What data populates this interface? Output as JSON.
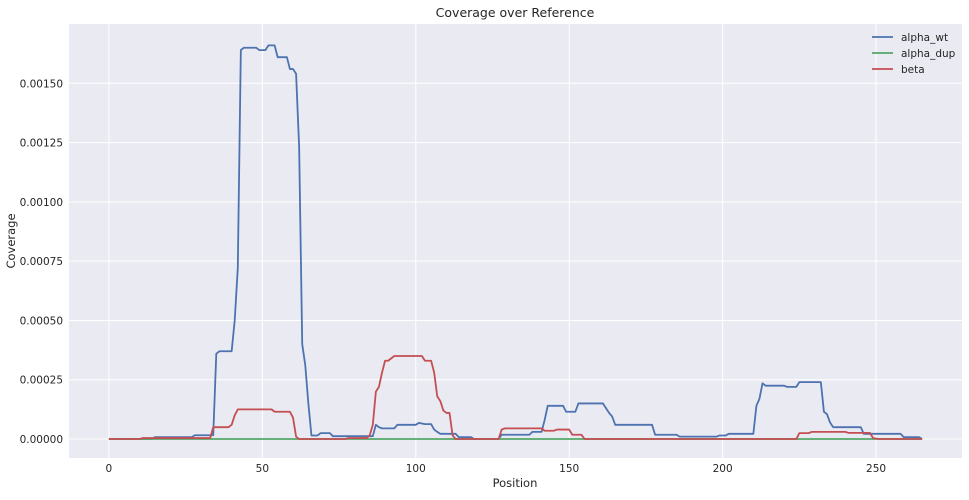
{
  "chart_data": {
    "type": "line",
    "title": "Coverage over Reference",
    "xlabel": "Position",
    "ylabel": "Coverage",
    "xlim": [
      -13,
      278
    ],
    "ylim": [
      -8e-05,
      0.00175
    ],
    "xticks": [
      0,
      50,
      100,
      150,
      200,
      250
    ],
    "xtick_labels": [
      "0",
      "50",
      "100",
      "150",
      "200",
      "250"
    ],
    "yticks": [
      0,
      0.00025,
      0.0005,
      0.00075,
      0.001,
      0.00125,
      0.0015
    ],
    "ytick_labels": [
      "0.00000",
      "0.00025",
      "0.00050",
      "0.00075",
      "0.00100",
      "0.00125",
      "0.00150"
    ],
    "grid": true,
    "background": "#EAEAF2",
    "legend_position": "top-right",
    "series": [
      {
        "name": "alpha_wt",
        "color": "#4C72B0",
        "points": [
          [
            0,
            0
          ],
          [
            14,
            0
          ],
          [
            15,
            8e-06
          ],
          [
            27,
            8e-06
          ],
          [
            28,
            1.6e-05
          ],
          [
            34,
            1.6e-05
          ],
          [
            35,
            0.00036
          ],
          [
            36,
            0.00037
          ],
          [
            40,
            0.00037
          ],
          [
            41,
            0.0005
          ],
          [
            42,
            0.00072
          ],
          [
            43,
            0.00164
          ],
          [
            44,
            0.00165
          ],
          [
            48,
            0.00165
          ],
          [
            49,
            0.00164
          ],
          [
            51,
            0.00164
          ],
          [
            52,
            0.00166
          ],
          [
            54,
            0.00166
          ],
          [
            55,
            0.00161
          ],
          [
            58,
            0.00161
          ],
          [
            59,
            0.00156
          ],
          [
            60,
            0.00156
          ],
          [
            61,
            0.00154
          ],
          [
            62,
            0.00123
          ],
          [
            63,
            0.0004
          ],
          [
            64,
            0.00031
          ],
          [
            65,
            0.00015
          ],
          [
            66,
            1.5e-05
          ],
          [
            68,
            1.5e-05
          ],
          [
            69,
            2.5e-05
          ],
          [
            72,
            2.5e-05
          ],
          [
            73,
            1.2e-05
          ],
          [
            86,
            1.2e-05
          ],
          [
            87,
            6e-05
          ],
          [
            88,
            5e-05
          ],
          [
            89,
            4.5e-05
          ],
          [
            93,
            4.5e-05
          ],
          [
            94,
            6e-05
          ],
          [
            100,
            6e-05
          ],
          [
            101,
            6.8e-05
          ],
          [
            103,
            6.3e-05
          ],
          [
            105,
            6.3e-05
          ],
          [
            106,
            4e-05
          ],
          [
            107,
            3e-05
          ],
          [
            108,
            2.2e-05
          ],
          [
            113,
            2.2e-05
          ],
          [
            114,
            8e-06
          ],
          [
            118,
            8e-06
          ],
          [
            119,
            0
          ],
          [
            127,
            0
          ],
          [
            128,
            1.8e-05
          ],
          [
            137,
            1.8e-05
          ],
          [
            138,
            3e-05
          ],
          [
            141,
            3e-05
          ],
          [
            142,
            8e-05
          ],
          [
            143,
            0.00014
          ],
          [
            148,
            0.00014
          ],
          [
            149,
            0.000115
          ],
          [
            152,
            0.000115
          ],
          [
            153,
            0.00015
          ],
          [
            161,
            0.00015
          ],
          [
            162,
            0.00013
          ],
          [
            163,
            0.00011
          ],
          [
            164,
            9.5e-05
          ],
          [
            165,
            6e-05
          ],
          [
            177,
            6e-05
          ],
          [
            178,
            1.8e-05
          ],
          [
            185,
            1.8e-05
          ],
          [
            186,
            1e-05
          ],
          [
            198,
            1e-05
          ],
          [
            199,
            1.5e-05
          ],
          [
            201,
            1.5e-05
          ],
          [
            202,
            2.2e-05
          ],
          [
            210,
            2.2e-05
          ],
          [
            211,
            0.00014
          ],
          [
            212,
            0.00017
          ],
          [
            213,
            0.000235
          ],
          [
            214,
            0.000225
          ],
          [
            220,
            0.000225
          ],
          [
            221,
            0.00022
          ],
          [
            224,
            0.00022
          ],
          [
            225,
            0.00024
          ],
          [
            232,
            0.00024
          ],
          [
            233,
            0.000115
          ],
          [
            234,
            0.000105
          ],
          [
            235,
            7e-05
          ],
          [
            236,
            5e-05
          ],
          [
            245,
            5e-05
          ],
          [
            246,
            2.2e-05
          ],
          [
            258,
            2.2e-05
          ],
          [
            259,
            8e-06
          ],
          [
            264,
            8e-06
          ],
          [
            265,
            0
          ]
        ]
      },
      {
        "name": "alpha_dup",
        "color": "#55A868",
        "points": [
          [
            0,
            0
          ],
          [
            265,
            0
          ]
        ]
      },
      {
        "name": "beta",
        "color": "#C44E52",
        "points": [
          [
            0,
            0
          ],
          [
            10,
            0
          ],
          [
            11,
            4e-06
          ],
          [
            33,
            4e-06
          ],
          [
            34,
            5e-05
          ],
          [
            39,
            5e-05
          ],
          [
            40,
            6e-05
          ],
          [
            41,
            0.0001
          ],
          [
            42,
            0.000125
          ],
          [
            53,
            0.000125
          ],
          [
            54,
            0.000115
          ],
          [
            59,
            0.000115
          ],
          [
            60,
            9e-05
          ],
          [
            61,
            1e-05
          ],
          [
            62,
            0
          ],
          [
            77,
            0
          ],
          [
            78,
            4e-06
          ],
          [
            84,
            4e-06
          ],
          [
            85,
            1.6e-05
          ],
          [
            86,
            6e-05
          ],
          [
            87,
            0.0002
          ],
          [
            88,
            0.00022
          ],
          [
            89,
            0.00028
          ],
          [
            90,
            0.00033
          ],
          [
            91,
            0.00033
          ],
          [
            92,
            0.00034
          ],
          [
            93,
            0.00035
          ],
          [
            102,
            0.00035
          ],
          [
            103,
            0.00033
          ],
          [
            105,
            0.00033
          ],
          [
            106,
            0.00028
          ],
          [
            107,
            0.00018
          ],
          [
            108,
            0.00016
          ],
          [
            109,
            0.00012
          ],
          [
            110,
            0.00011
          ],
          [
            111,
            0.00011
          ],
          [
            112,
            1.5e-05
          ],
          [
            113,
            0
          ],
          [
            127,
            0
          ],
          [
            128,
            4e-05
          ],
          [
            129,
            4.5e-05
          ],
          [
            141,
            4.5e-05
          ],
          [
            142,
            3.5e-05
          ],
          [
            145,
            3.5e-05
          ],
          [
            146,
            4e-05
          ],
          [
            150,
            4e-05
          ],
          [
            151,
            1.8e-05
          ],
          [
            154,
            1.8e-05
          ],
          [
            155,
            0
          ],
          [
            224,
            0
          ],
          [
            225,
            2.5e-05
          ],
          [
            228,
            2.5e-05
          ],
          [
            229,
            3e-05
          ],
          [
            240,
            3e-05
          ],
          [
            241,
            2.6e-05
          ],
          [
            248,
            2.6e-05
          ],
          [
            249,
            4e-06
          ],
          [
            251,
            0
          ],
          [
            265,
            0
          ]
        ]
      }
    ]
  }
}
